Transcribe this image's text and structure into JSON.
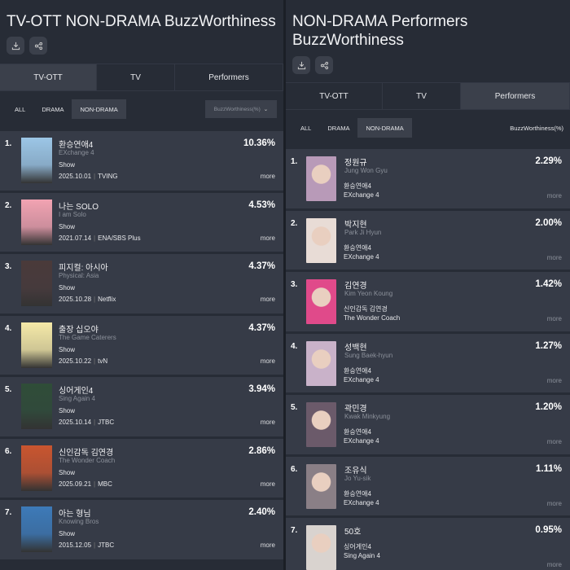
{
  "left": {
    "title": "TV-OTT NON-DRAMA BuzzWorthiness",
    "icons": [
      "download-icon",
      "share-icon"
    ],
    "tabs": [
      "TV-OTT",
      "TV",
      "Performers"
    ],
    "active_tab": "TV-OTT",
    "filters": [
      "ALL",
      "DRAMA",
      "NON-DRAMA"
    ],
    "active_filter": "NON-DRAMA",
    "sort_dropdown": "BuzzWorthiness(%)",
    "items": [
      {
        "rank": "1.",
        "ko": "환승연애4",
        "en": "EXchange 4",
        "genre": "Show",
        "date": "2025.10.01",
        "channel": "TVING",
        "pct": "10.36%",
        "more": "more",
        "color": "#9cc6e6"
      },
      {
        "rank": "2.",
        "ko": "나는 SOLO",
        "en": "I am Solo",
        "genre": "Show",
        "date": "2021.07.14",
        "channel": "ENA/SBS Plus",
        "pct": "4.53%",
        "more": "more",
        "color": "#f2a3b2"
      },
      {
        "rank": "3.",
        "ko": "피지컬: 아시아",
        "en": "Physical: Asia",
        "genre": "Show",
        "date": "2025.10.28",
        "channel": "Netflix",
        "pct": "4.37%",
        "more": "more",
        "color": "#4a3a3a"
      },
      {
        "rank": "4.",
        "ko": "출장 십오야",
        "en": "The Game Caterers",
        "genre": "Show",
        "date": "2025.10.22",
        "channel": "tvN",
        "pct": "4.37%",
        "more": "more",
        "color": "#f5e9a8"
      },
      {
        "rank": "5.",
        "ko": "싱어게인4",
        "en": "Sing Again 4",
        "genre": "Show",
        "date": "2025.10.14",
        "channel": "JTBC",
        "pct": "3.94%",
        "more": "more",
        "color": "#2f4d38"
      },
      {
        "rank": "6.",
        "ko": "신인감독 김연경",
        "en": "The Wonder Coach",
        "genre": "Show",
        "date": "2025.09.21",
        "channel": "MBC",
        "pct": "2.86%",
        "more": "more",
        "color": "#c9552f"
      },
      {
        "rank": "7.",
        "ko": "아는 형님",
        "en": "Knowing Bros",
        "genre": "Show",
        "date": "2015.12.05",
        "channel": "JTBC",
        "pct": "2.40%",
        "more": "more",
        "color": "#3d7ab8"
      }
    ]
  },
  "right": {
    "title": "NON-DRAMA Performers BuzzWorthiness",
    "icons": [
      "download-icon",
      "share-icon"
    ],
    "tabs": [
      "TV-OTT",
      "TV",
      "Performers"
    ],
    "active_tab": "Performers",
    "filters": [
      "ALL",
      "DRAMA",
      "NON-DRAMA"
    ],
    "active_filter": "NON-DRAMA",
    "sort_label": "BuzzWorthiness(%)",
    "items": [
      {
        "rank": "1.",
        "ko": "정원규",
        "en": "Jung Won Gyu",
        "prog_ko": "환승연애4",
        "prog_en": "EXchange 4",
        "pct": "2.29%",
        "more": "more",
        "color": "#b89ab8"
      },
      {
        "rank": "2.",
        "ko": "박지현",
        "en": "Park Ji Hyun",
        "prog_ko": "환승연애4",
        "prog_en": "EXchange 4",
        "pct": "2.00%",
        "more": "more",
        "color": "#e8dcd6"
      },
      {
        "rank": "3.",
        "ko": "김연경",
        "en": "Kim Yeon Koung",
        "prog_ko": "신인감독 김연경",
        "prog_en": "The Wonder Coach",
        "pct": "1.42%",
        "more": "more",
        "color": "#e04a8a"
      },
      {
        "rank": "4.",
        "ko": "성백현",
        "en": "Sung Baek-hyun",
        "prog_ko": "환승연애4",
        "prog_en": "EXchange 4",
        "pct": "1.27%",
        "more": "more",
        "color": "#c9b2c9"
      },
      {
        "rank": "5.",
        "ko": "곽민경",
        "en": "Kwak Minkyung",
        "prog_ko": "환승연애4",
        "prog_en": "EXchange 4",
        "pct": "1.20%",
        "more": "more",
        "color": "#6b5a6a"
      },
      {
        "rank": "6.",
        "ko": "조유식",
        "en": "Jo Yu-sik",
        "prog_ko": "환승연애4",
        "prog_en": "EXchange 4",
        "pct": "1.11%",
        "more": "more",
        "color": "#8a7f86"
      },
      {
        "rank": "7.",
        "ko": "50호",
        "en": "",
        "prog_ko": "싱어게인4",
        "prog_en": "Sing Again 4",
        "pct": "0.95%",
        "more": "more",
        "color": "#d9d3cf"
      }
    ]
  }
}
